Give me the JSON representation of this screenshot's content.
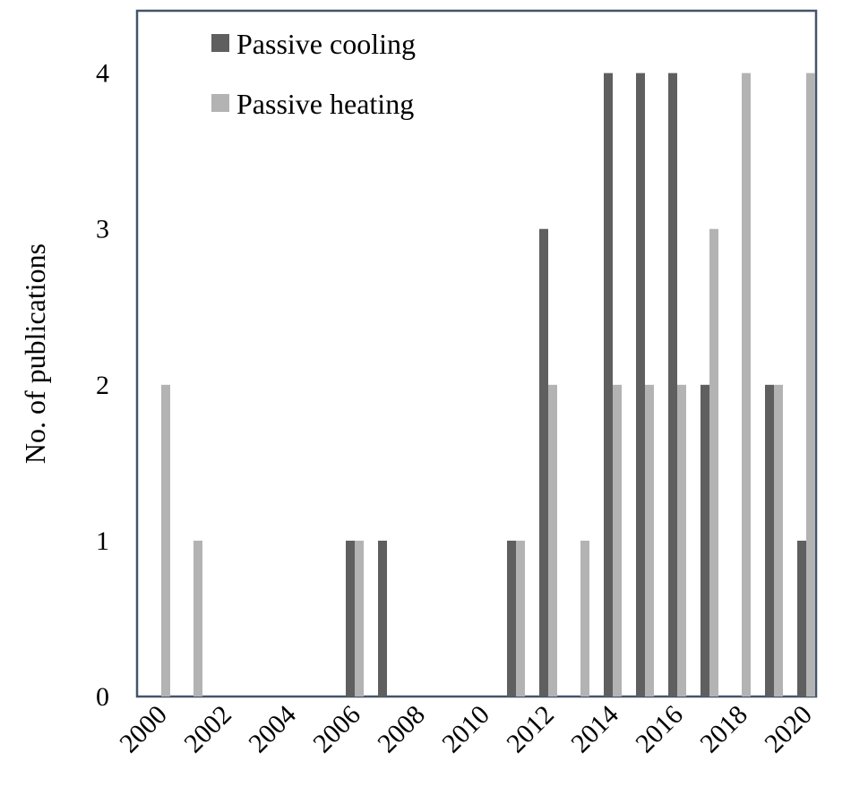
{
  "chart_data": {
    "type": "bar",
    "categories": [
      "2000",
      "2001",
      "2002",
      "2003",
      "2004",
      "2005",
      "2006",
      "2007",
      "2008",
      "2009",
      "2010",
      "2011",
      "2012",
      "2013",
      "2014",
      "2015",
      "2016",
      "2017",
      "2018",
      "2019",
      "2020"
    ],
    "x_tick_labels": [
      "2000",
      "2002",
      "2004",
      "2006",
      "2008",
      "2010",
      "2012",
      "2014",
      "2016",
      "2018",
      "2020"
    ],
    "series": [
      {
        "name": "Passive cooling",
        "color": "#5f5f5f",
        "values": [
          0,
          0,
          0,
          0,
          0,
          0,
          1,
          1,
          0,
          0,
          0,
          1,
          3,
          0,
          4,
          4,
          4,
          2,
          0,
          2,
          1
        ]
      },
      {
        "name": "Passive heating",
        "color": "#b3b3b3",
        "values": [
          2,
          1,
          0,
          0,
          0,
          0,
          1,
          0,
          0,
          0,
          0,
          1,
          2,
          1,
          2,
          2,
          2,
          3,
          4,
          2,
          4
        ]
      }
    ],
    "ylabel": "No. of publications",
    "xlabel": "",
    "title": "",
    "ylim": [
      0,
      4.4
    ],
    "yticks": [
      0,
      1,
      2,
      3,
      4
    ],
    "grid": false,
    "legend": "top-center"
  }
}
